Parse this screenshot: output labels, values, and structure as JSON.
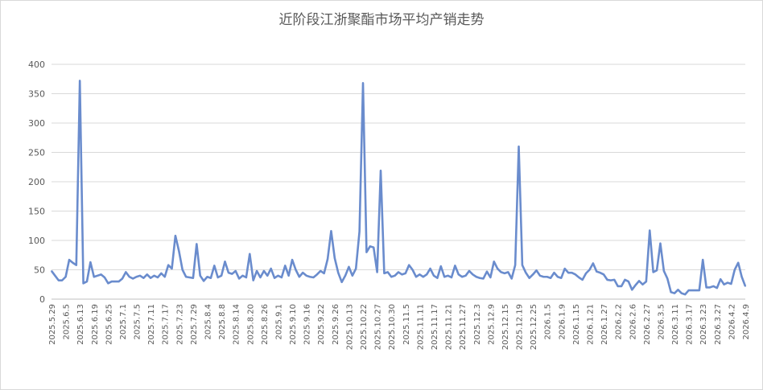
{
  "chart_data": {
    "type": "line",
    "title": "近阶段江浙聚酯市场平均产销走势",
    "xlabel": "",
    "ylabel": "",
    "ylim": [
      0,
      400
    ],
    "yticks": [
      0,
      50,
      100,
      150,
      200,
      250,
      300,
      350,
      400
    ],
    "grid": true,
    "legend": "none",
    "line_color": "#6a8ccd",
    "x_tick_labels": [
      "2025.5.29",
      "2025.6.5",
      "2025.6.13",
      "2025.6.19",
      "2025.6.25",
      "2025.7.1",
      "2025.7.5",
      "2025.7.11",
      "2025.7.17",
      "2025.7.23",
      "2025.7.29",
      "2025.8.4",
      "2025.8.8",
      "2025.8.14",
      "2025.8.20",
      "2025.8.26",
      "2025.9.1",
      "2025.9.10",
      "2025.9.16",
      "2025.9.22",
      "2025.9.26",
      "2025.10.13",
      "2025.10.22",
      "2025.10.27",
      "2025.10.30",
      "2025.11.5",
      "2025.11.11",
      "2025.11.17",
      "2025.11.21",
      "2025.11.27",
      "2025.12.3",
      "2025.12.9",
      "2025.12.15",
      "2025.12.19",
      "2025.12.25",
      "2026.1.5",
      "2026.1.9",
      "2026.1.15",
      "2026.1.21",
      "2026.1.27",
      "2026.2.2",
      "2026.2.6",
      "2026.2.27",
      "2026.3.5",
      "2026.3.11",
      "2026.3.17",
      "2026.3.23",
      "2026.3.27",
      "2026.4.2",
      "2026.4.9"
    ],
    "values": [
      48,
      40,
      32,
      32,
      38,
      67,
      62,
      58,
      372,
      27,
      30,
      63,
      38,
      40,
      42,
      37,
      27,
      30,
      30,
      30,
      35,
      46,
      38,
      35,
      38,
      40,
      36,
      42,
      36,
      40,
      37,
      44,
      38,
      58,
      52,
      108,
      82,
      50,
      38,
      37,
      36,
      94,
      40,
      31,
      38,
      36,
      57,
      37,
      40,
      64,
      45,
      43,
      48,
      35,
      40,
      37,
      77,
      32,
      48,
      37,
      48,
      40,
      52,
      36,
      40,
      37,
      57,
      40,
      67,
      50,
      38,
      45,
      40,
      38,
      37,
      42,
      48,
      44,
      68,
      116,
      70,
      45,
      29,
      40,
      55,
      40,
      52,
      115,
      368,
      80,
      90,
      88,
      46,
      219,
      44,
      46,
      38,
      40,
      46,
      42,
      44,
      58,
      50,
      38,
      42,
      38,
      42,
      52,
      40,
      36,
      56,
      38,
      40,
      37,
      57,
      42,
      38,
      40,
      48,
      42,
      38,
      36,
      35,
      47,
      37,
      64,
      52,
      46,
      44,
      46,
      35,
      58,
      260,
      58,
      45,
      36,
      42,
      49,
      40,
      38,
      38,
      36,
      45,
      38,
      36,
      52,
      45,
      45,
      42,
      37,
      33,
      44,
      50,
      61,
      47,
      45,
      42,
      33,
      32,
      33,
      22,
      22,
      33,
      30,
      16,
      24,
      31,
      25,
      30,
      117,
      46,
      49,
      95,
      48,
      35,
      12,
      10,
      16,
      10,
      8,
      15,
      15,
      15,
      15,
      67,
      20,
      20,
      22,
      19,
      34,
      25,
      28,
      26,
      50,
      62,
      38,
      22
    ]
  }
}
